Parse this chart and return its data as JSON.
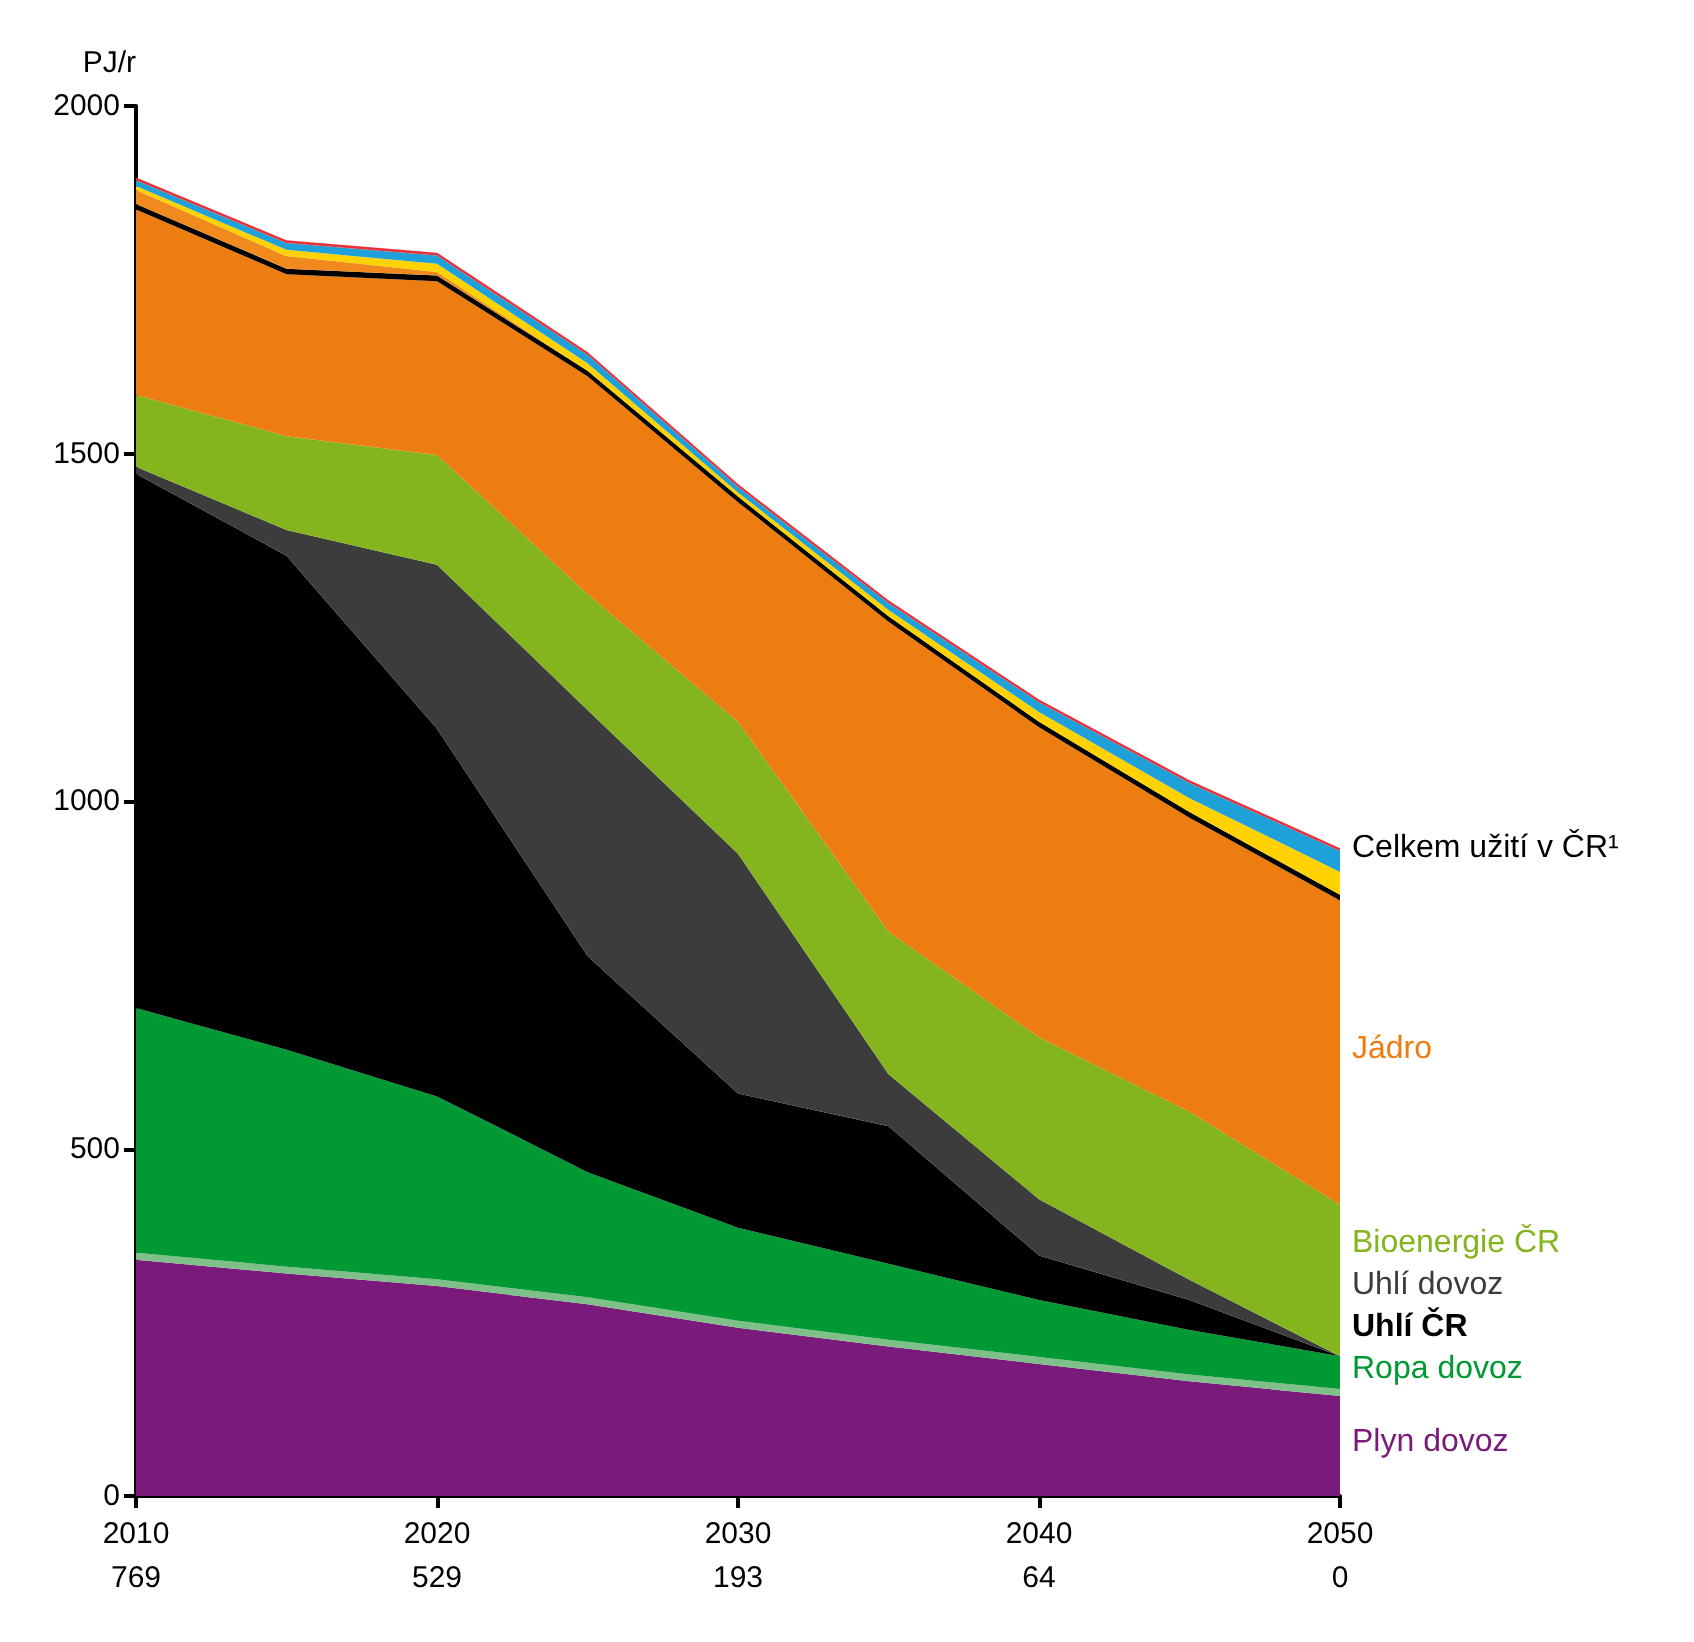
{
  "chart_data": {
    "type": "area",
    "stacked": true,
    "ylabel": "PJ/r",
    "categories": [
      "2010\n769",
      null,
      "2020\n529",
      null,
      "2030\n193",
      null,
      "2040\n64",
      null,
      "2050\n0"
    ],
    "ylim": [
      0,
      2000
    ],
    "yticks": [
      0,
      500,
      1000,
      1500,
      2000
    ],
    "series": [
      {
        "name": "Plyn dovoz",
        "color": "#7a1a7a",
        "values": [
          340,
          320,
          302,
          276,
          242,
          215,
          190,
          165,
          144
        ]
      },
      {
        "color": "#7fbf8a",
        "values": [
          10,
          10,
          10,
          10,
          10,
          10,
          10,
          10,
          10
        ]
      },
      {
        "name": "Ropa dovoz",
        "color": "#009933",
        "values": [
          352,
          312,
          263,
          180,
          134,
          109,
          82,
          64,
          47
        ]
      },
      {
        "name": "Uhlí ČR",
        "color": "#000000",
        "values": [
          769,
          711,
          529,
          311,
          193,
          198,
          64,
          43,
          0
        ]
      },
      {
        "name": "Uhlí dovoz",
        "color": "#3c3c3c",
        "values": [
          10,
          37,
          236,
          354,
          345,
          75,
          81,
          29,
          0
        ]
      },
      {
        "name": "Bioenergie ČR",
        "color": "#84b51f",
        "values": [
          103,
          135,
          158,
          167,
          190,
          205,
          233,
          242,
          218
        ]
      },
      {
        "name": "Jádro",
        "color": "#ee7d11",
        "values": [
          267,
          233,
          250,
          313,
          316,
          446,
          446,
          423,
          438
        ]
      },
      {
        "color": "#000000",
        "values": [
          8,
          8,
          8,
          8,
          8,
          8,
          8,
          8,
          8
        ]
      },
      {
        "color": "#f08a1e",
        "values": [
          20,
          18,
          5,
          0,
          0,
          0,
          0,
          0,
          0
        ]
      },
      {
        "color": "#ffd200",
        "values": [
          6,
          9,
          12,
          11,
          6,
          9,
          14,
          20,
          33
        ]
      },
      {
        "color": "#1ea0d8",
        "values": [
          8,
          10,
          12,
          12,
          8,
          10,
          14,
          22,
          30
        ]
      },
      {
        "color": "#e8303a",
        "values": [
          4,
          4,
          4,
          4,
          4,
          4,
          4,
          4,
          4
        ]
      }
    ],
    "annotations": [
      "Celkem užití v ČR¹"
    ]
  }
}
